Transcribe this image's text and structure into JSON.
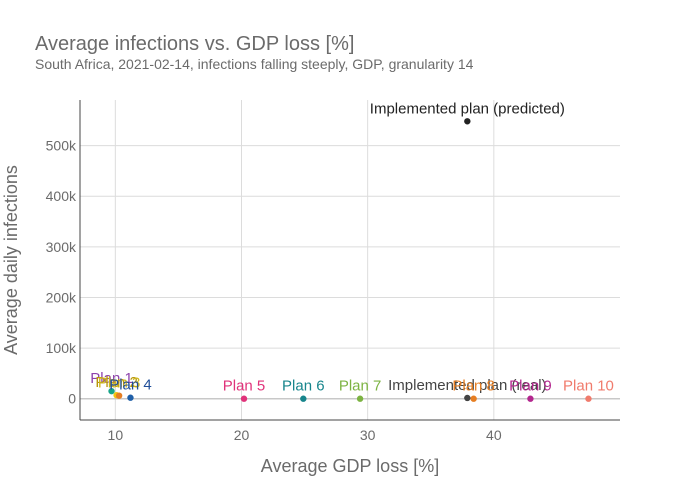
{
  "chart_data": {
    "type": "scatter",
    "title": "Average infections vs. GDP loss [%]",
    "subtitle": "South Africa, 2021-02-14, infections falling steeply, GDP, granularity 14",
    "xlabel": "Average GDP loss [%]",
    "ylabel": "Average daily infections",
    "xlim": [
      7.2,
      50.0
    ],
    "ylim": [
      -42000,
      590000
    ],
    "x_ticks": [
      10,
      20,
      30,
      40
    ],
    "x_tick_labels": [
      "10",
      "20",
      "30",
      "40"
    ],
    "y_ticks": [
      0,
      100000,
      200000,
      300000,
      400000,
      500000
    ],
    "y_tick_labels": [
      "0",
      "100k",
      "200k",
      "300k",
      "400k",
      "500k"
    ],
    "grid": true,
    "points": [
      {
        "label": "Plan 1",
        "x": 9.7,
        "y": 15000,
        "color": "#17a589",
        "label_color": "#8e44ad"
      },
      {
        "label": "Plan 2",
        "x": 10.1,
        "y": 7000,
        "color": "#f1c40f",
        "label_color": "#b7950b"
      },
      {
        "label": "Plan 3",
        "x": 10.3,
        "y": 6000,
        "color": "#e67e22",
        "label_color": "#cdb61c"
      },
      {
        "label": "Plan 4",
        "x": 11.2,
        "y": 2000,
        "color": "#1f5fa8",
        "label_color": "#1f4e99"
      },
      {
        "label": "Plan 5",
        "x": 20.2,
        "y": 0,
        "color": "#e0327a",
        "label_color": "#e0327a"
      },
      {
        "label": "Plan 6",
        "x": 24.9,
        "y": 0,
        "color": "#17858c",
        "label_color": "#17858c"
      },
      {
        "label": "Plan 7",
        "x": 29.4,
        "y": 0,
        "color": "#7cb342",
        "label_color": "#7cb342"
      },
      {
        "label": "Implemented plan (real)",
        "x": 37.9,
        "y": 1500,
        "color": "#444444",
        "label_color": "#444444"
      },
      {
        "label": "Plan 8",
        "x": 38.4,
        "y": 0,
        "color": "#e67e22",
        "label_color": "#e67e22"
      },
      {
        "label": "Plan 9",
        "x": 42.9,
        "y": 0,
        "color": "#b3278e",
        "label_color": "#b3278e"
      },
      {
        "label": "Plan 10",
        "x": 47.5,
        "y": 0,
        "color": "#f07b6c",
        "label_color": "#f07b6c"
      },
      {
        "label": "Implemented plan (predicted)",
        "x": 37.9,
        "y": 548000,
        "color": "#222222",
        "label_color": "#222222"
      }
    ]
  }
}
